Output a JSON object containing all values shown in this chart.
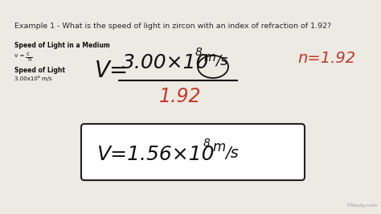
{
  "bg_color": "#ede9e3",
  "title_text": "Example 1 - What is the speed of light in zircon with an index of refraction of 1.92?",
  "title_fontsize": 6.8,
  "label1": "Speed of Light in a Medium",
  "label2_top": "c",
  "label2_bot": "n",
  "label3": "Speed of Light",
  "label4": "3.00x10⁸ m/s",
  "denominator_color": "#c0392b",
  "n_color": "#c0392b",
  "watermark": "©Study.com"
}
